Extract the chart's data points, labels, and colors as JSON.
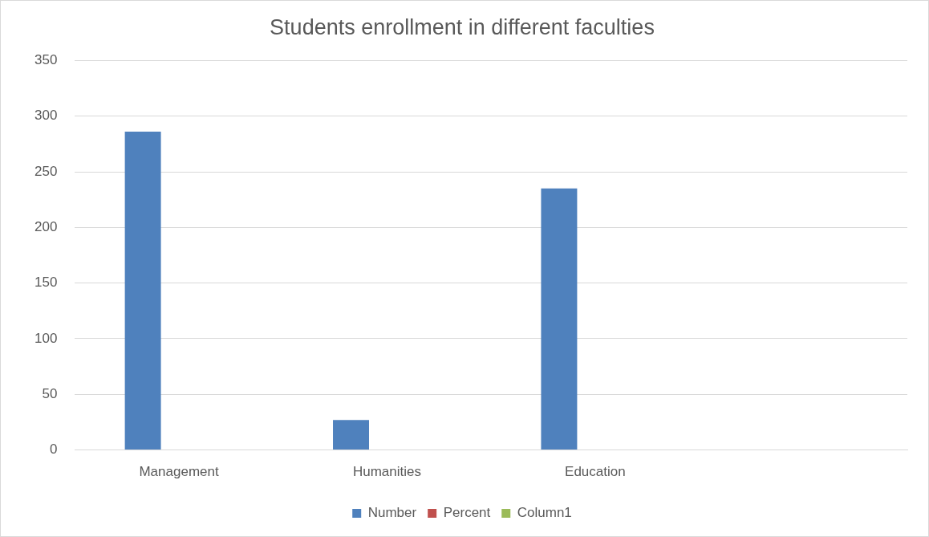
{
  "chart_data": {
    "type": "bar",
    "title": "Students enrollment in different faculties",
    "categories": [
      "Management",
      "Humanities",
      "Education",
      null
    ],
    "series": [
      {
        "name": "Number",
        "color": "#4f81bd",
        "values": [
          286,
          27,
          235,
          null
        ]
      },
      {
        "name": "Percent",
        "color": "#c0504d",
        "values": [
          null,
          null,
          null,
          null
        ]
      },
      {
        "name": "Column1",
        "color": "#9bbb59",
        "values": [
          null,
          null,
          null,
          null
        ]
      }
    ],
    "ylim": [
      0,
      350
    ],
    "yticks": [
      0,
      50,
      100,
      150,
      200,
      250,
      300,
      350
    ],
    "grid": "y",
    "legend": "bottom"
  }
}
